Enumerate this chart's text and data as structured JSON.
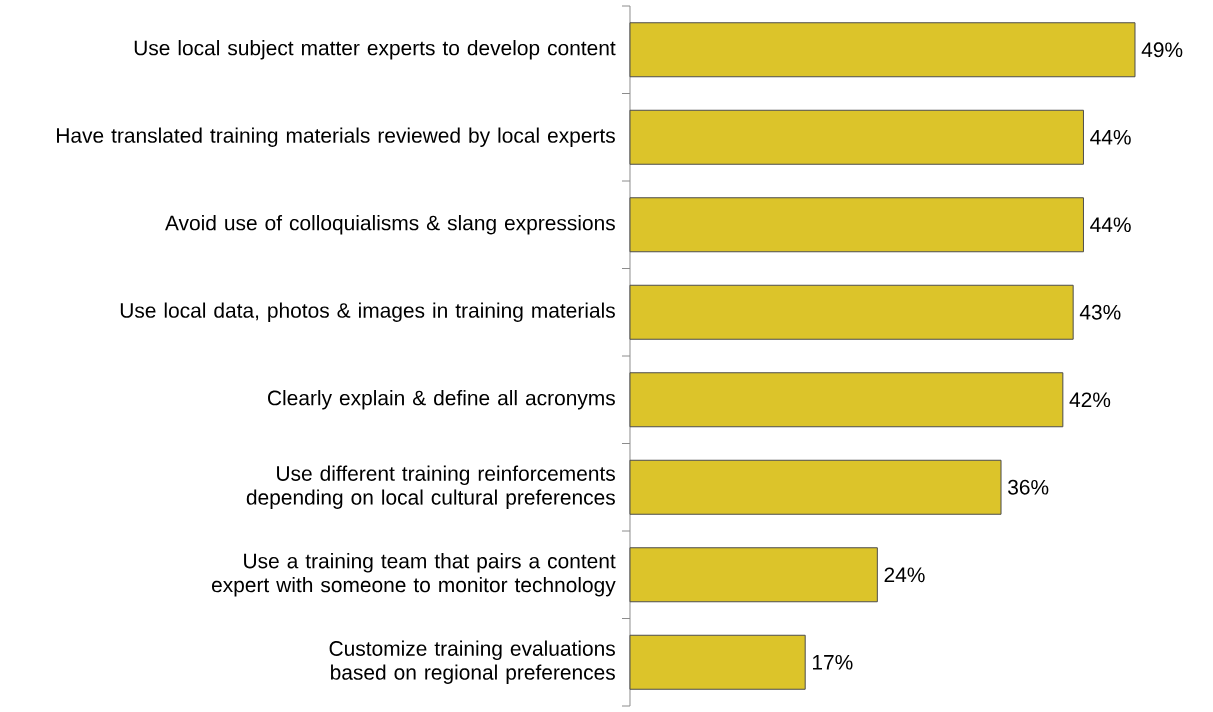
{
  "chart_data": {
    "type": "bar",
    "orientation": "horizontal",
    "categories": [
      "Use local subject matter experts to develop content",
      "Have translated training materials reviewed by local experts",
      "Avoid use of colloquialisms & slang expressions",
      "Use local data, photos & images in training materials",
      "Clearly explain & define all acronyms",
      "Use different training reinforcements depending on local cultural preferences",
      "Use a training team that pairs a content expert with someone to monitor technology",
      "Customize training evaluations based on regional preferences"
    ],
    "values": [
      49,
      44,
      44,
      43,
      42,
      36,
      24,
      17
    ],
    "value_labels": [
      "49%",
      "44%",
      "44%",
      "43%",
      "42%",
      "36%",
      "24%",
      "17%"
    ],
    "color": "#dcc42a"
  }
}
